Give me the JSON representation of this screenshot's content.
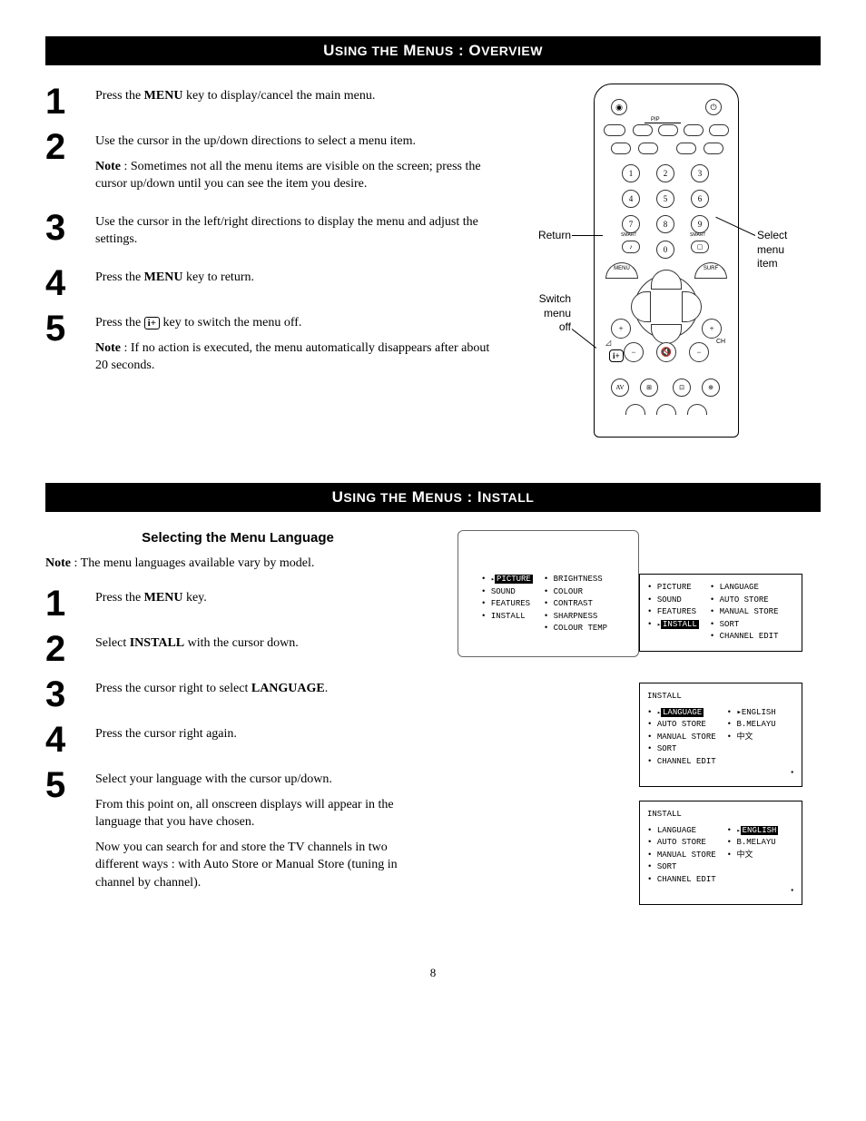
{
  "page_number": "8",
  "colors": {
    "header_bg": "#000000",
    "header_fg": "#ffffff",
    "text": "#000000",
    "border": "#666666"
  },
  "section1": {
    "title_prefix": "U",
    "title_rest1": "SING THE",
    "title_mid": " M",
    "title_rest2": "ENUS",
    "title_sep": " : O",
    "title_rest3": "VERVIEW",
    "steps": [
      {
        "n": "1",
        "lines": [
          "Press the <b>MENU</b> key to display/cancel the main menu."
        ]
      },
      {
        "n": "2",
        "lines": [
          "Use the cursor in the up/down directions to select a menu item.",
          "<b>Note</b> : Sometimes not all the menu items are visible on the screen; press the cursor up/down until you can see the item you desire."
        ]
      },
      {
        "n": "3",
        "lines": [
          "Use the cursor in the left/right directions to display the menu and adjust the settings."
        ]
      },
      {
        "n": "4",
        "lines": [
          "Press the <b>MENU</b> key to return."
        ]
      },
      {
        "n": "5",
        "lines": [
          "Press the <span class='info-icon'>i+</span> key to switch the menu off.",
          "<b>Note</b> : If no action is executed, the menu automatically disappears after about 20 seconds."
        ]
      }
    ],
    "labels": {
      "return": "Return",
      "switch_off": "Switch\nmenu\noff",
      "select_item": "Select\nmenu\nitem"
    }
  },
  "section2": {
    "title_prefix": "U",
    "title_rest1": "SING THE",
    "title_mid": " M",
    "title_rest2": "ENUS",
    "title_sep": " : I",
    "title_rest3": "NSTALL",
    "subheading": "Selecting the Menu Language",
    "note": "<b>Note</b> : The menu languages available vary by model.",
    "steps": [
      {
        "n": "1",
        "lines": [
          "Press the <b>MENU</b> key."
        ]
      },
      {
        "n": "2",
        "lines": [
          "Select <b>INSTALL</b> with the cursor down."
        ]
      },
      {
        "n": "3",
        "lines": [
          "Press the cursor right to select <b>LANGUAGE</b>."
        ]
      },
      {
        "n": "4",
        "lines": [
          "Press the cursor right again."
        ]
      },
      {
        "n": "5",
        "lines": [
          "Select your language with the cursor up/down.",
          "From this point on, all onscreen displays will appear in the language that you have chosen.",
          "Now you can search for and store the TV channels in two different ways : with Auto Store or Manual Store (tuning in channel by channel)."
        ]
      }
    ],
    "osd": {
      "screen1": {
        "left": [
          "PICTURE",
          "SOUND",
          "FEATURES",
          "INSTALL"
        ],
        "selected": 0,
        "right": [
          "BRIGHTNESS",
          "COLOUR",
          "CONTRAST",
          "SHARPNESS",
          "COLOUR TEMP"
        ]
      },
      "screen2": {
        "left": [
          "PICTURE",
          "SOUND",
          "FEATURES",
          "INSTALL"
        ],
        "selected": 3,
        "right": [
          "LANGUAGE",
          "AUTO STORE",
          "MANUAL STORE",
          "SORT",
          "CHANNEL EDIT"
        ]
      },
      "screen3": {
        "title": "INSTALL",
        "left": [
          "LANGUAGE",
          "AUTO STORE",
          "MANUAL STORE",
          "SORT",
          "CHANNEL EDIT"
        ],
        "selected": 0,
        "right": [
          "ENGLISH",
          "B.MELAYU",
          "中文"
        ],
        "right_sel": 0
      },
      "screen4": {
        "title": "INSTALL",
        "left": [
          "LANGUAGE",
          "AUTO STORE",
          "MANUAL STORE",
          "SORT",
          "CHANNEL EDIT"
        ],
        "selected": -1,
        "right": [
          "ENGLISH",
          "B.MELAYU",
          "中文"
        ],
        "right_sel": 0
      }
    }
  }
}
